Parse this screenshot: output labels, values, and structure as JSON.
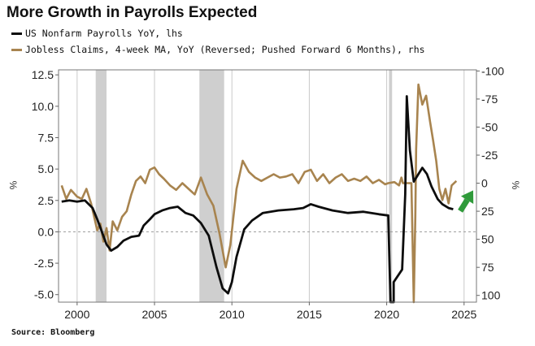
{
  "title": "More Growth in Payrolls Expected",
  "source": "Source: Bloomberg",
  "colors": {
    "payrolls": "#0d0d0d",
    "claims": "#a8844f",
    "recession": "#cfcfcf",
    "arrow": "#2f9a3a",
    "zero_line": "#9a9a9a",
    "grid": "#c9c9c9"
  },
  "chart_data": {
    "type": "line",
    "title": "More Growth in Payrolls Expected",
    "legend": [
      {
        "name": "US Nonfarm Payrolls YoY, lhs",
        "color": "#0d0d0d"
      },
      {
        "name": "Jobless Claims, 4-week MA, YoY (Reversed; Pushed Forward 6 Months), rhs",
        "color": "#a8844f"
      }
    ],
    "x_ticks": [
      "2000",
      "2005",
      "2010",
      "2015",
      "2020",
      "2025"
    ],
    "x_range": [
      1998.8,
      2025.8
    ],
    "left_axis": {
      "label": "%",
      "ticks": [
        "12.5",
        "10.0",
        "7.5",
        "5.0",
        "2.5",
        "0.0",
        "-2.5",
        "-5.0"
      ],
      "range": [
        -5.6,
        12.9
      ]
    },
    "right_axis": {
      "label": "%",
      "reversed": true,
      "ticks": [
        "-100",
        "-75",
        "-50",
        "-25",
        "0",
        "25",
        "50",
        "75",
        "100"
      ],
      "range": [
        -101,
        106
      ]
    },
    "recessions": [
      [
        2001.2,
        2001.9
      ],
      [
        2007.9,
        2009.5
      ],
      [
        2020.15,
        2020.35
      ]
    ],
    "series": [
      {
        "name": "US Nonfarm Payrolls YoY, lhs",
        "axis": "left",
        "points": [
          [
            1999,
            2.4
          ],
          [
            1999.5,
            2.5
          ],
          [
            2000,
            2.4
          ],
          [
            2000.5,
            2.5
          ],
          [
            2001,
            1.9
          ],
          [
            2001.3,
            1.0
          ],
          [
            2001.6,
            0.0
          ],
          [
            2001.9,
            -1.0
          ],
          [
            2002.2,
            -1.5
          ],
          [
            2002.6,
            -1.2
          ],
          [
            2003,
            -0.7
          ],
          [
            2003.5,
            -0.4
          ],
          [
            2004,
            -0.3
          ],
          [
            2004.3,
            0.5
          ],
          [
            2004.7,
            1.0
          ],
          [
            2005,
            1.4
          ],
          [
            2005.5,
            1.7
          ],
          [
            2006,
            1.9
          ],
          [
            2006.5,
            2.0
          ],
          [
            2007,
            1.5
          ],
          [
            2007.5,
            1.3
          ],
          [
            2008,
            0.7
          ],
          [
            2008.5,
            -0.3
          ],
          [
            2009,
            -2.8
          ],
          [
            2009.4,
            -4.5
          ],
          [
            2009.75,
            -4.9
          ],
          [
            2010,
            -4.0
          ],
          [
            2010.3,
            -2.0
          ],
          [
            2010.8,
            0.2
          ],
          [
            2011.3,
            0.9
          ],
          [
            2012,
            1.5
          ],
          [
            2013,
            1.7
          ],
          [
            2014,
            1.8
          ],
          [
            2014.6,
            1.9
          ],
          [
            2015.1,
            2.2
          ],
          [
            2015.6,
            2.0
          ],
          [
            2016.5,
            1.7
          ],
          [
            2017.5,
            1.5
          ],
          [
            2018.5,
            1.6
          ],
          [
            2019.5,
            1.4
          ],
          [
            2020.1,
            1.3
          ],
          [
            2020.25,
            -5.6
          ],
          [
            2020.45,
            -5.6
          ],
          [
            2020.45,
            -4.0
          ],
          [
            2021.0,
            -3.0
          ],
          [
            2021.2,
            3.0
          ],
          [
            2021.3,
            10.8
          ],
          [
            2021.5,
            6.5
          ],
          [
            2021.75,
            4.0
          ],
          [
            2022.0,
            4.5
          ],
          [
            2022.3,
            5.1
          ],
          [
            2022.6,
            4.6
          ],
          [
            2022.9,
            3.6
          ],
          [
            2023.3,
            2.6
          ],
          [
            2023.6,
            2.2
          ],
          [
            2024.0,
            1.9
          ],
          [
            2024.3,
            1.8
          ]
        ]
      },
      {
        "name": "Jobless Claims, 4-week MA, YoY (Reversed; Pushed Forward 6 Months), rhs",
        "axis": "right",
        "points": [
          [
            1999,
            2
          ],
          [
            1999.3,
            14
          ],
          [
            1999.6,
            6
          ],
          [
            2000,
            12
          ],
          [
            2000.3,
            14
          ],
          [
            2000.6,
            5
          ],
          [
            2000.9,
            18
          ],
          [
            2001.1,
            30
          ],
          [
            2001.3,
            42
          ],
          [
            2001.5,
            36
          ],
          [
            2001.7,
            52
          ],
          [
            2001.9,
            40
          ],
          [
            2002.1,
            60
          ],
          [
            2002.3,
            34
          ],
          [
            2002.6,
            42
          ],
          [
            2002.9,
            30
          ],
          [
            2003.2,
            25
          ],
          [
            2003.5,
            10
          ],
          [
            2003.8,
            -2
          ],
          [
            2004.1,
            -6
          ],
          [
            2004.4,
            0
          ],
          [
            2004.7,
            -12
          ],
          [
            2005.0,
            -14
          ],
          [
            2005.3,
            -8
          ],
          [
            2005.6,
            -4
          ],
          [
            2006.0,
            2
          ],
          [
            2006.4,
            6
          ],
          [
            2006.8,
            0
          ],
          [
            2007.2,
            5
          ],
          [
            2007.6,
            10
          ],
          [
            2008.0,
            -5
          ],
          [
            2008.4,
            10
          ],
          [
            2008.8,
            20
          ],
          [
            2009.2,
            45
          ],
          [
            2009.6,
            75
          ],
          [
            2009.9,
            55
          ],
          [
            2010.3,
            5
          ],
          [
            2010.7,
            -20
          ],
          [
            2011.1,
            -10
          ],
          [
            2011.5,
            -5
          ],
          [
            2011.9,
            -2
          ],
          [
            2012.3,
            -5
          ],
          [
            2012.7,
            -8
          ],
          [
            2013.1,
            -5
          ],
          [
            2013.5,
            -6
          ],
          [
            2013.9,
            -8
          ],
          [
            2014.3,
            0
          ],
          [
            2014.7,
            -10
          ],
          [
            2015.1,
            -12
          ],
          [
            2015.5,
            -2
          ],
          [
            2015.9,
            -8
          ],
          [
            2016.3,
            0
          ],
          [
            2016.7,
            -5
          ],
          [
            2017.1,
            -8
          ],
          [
            2017.5,
            -2
          ],
          [
            2017.9,
            -4
          ],
          [
            2018.3,
            -2
          ],
          [
            2018.7,
            -6
          ],
          [
            2019.1,
            0
          ],
          [
            2019.5,
            -3
          ],
          [
            2019.9,
            1
          ],
          [
            2020.1,
            0
          ],
          [
            2020.5,
            -1
          ],
          [
            2020.8,
            2
          ],
          [
            2020.95,
            -5
          ],
          [
            2021.05,
            0
          ],
          [
            2021.6,
            0
          ],
          [
            2021.75,
            106
          ],
          [
            2021.85,
            30
          ],
          [
            2021.9,
            -30
          ],
          [
            2022.05,
            -88
          ],
          [
            2022.3,
            -70
          ],
          [
            2022.55,
            -78
          ],
          [
            2022.8,
            -55
          ],
          [
            2023.0,
            -38
          ],
          [
            2023.2,
            -20
          ],
          [
            2023.4,
            5
          ],
          [
            2023.6,
            15
          ],
          [
            2023.8,
            5
          ],
          [
            2024.0,
            18
          ],
          [
            2024.2,
            2
          ],
          [
            2024.5,
            -2
          ]
        ]
      }
    ],
    "annotations": [
      {
        "type": "arrow",
        "direction": "up-right",
        "near_x": 2025.2,
        "near_y_right": 15
      }
    ]
  }
}
